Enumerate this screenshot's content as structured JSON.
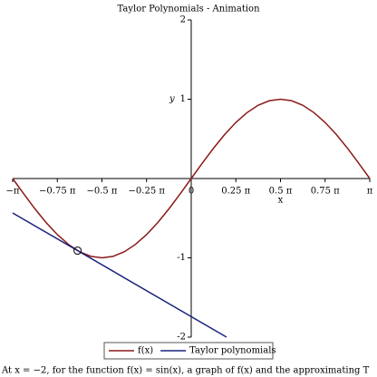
{
  "chart_data": {
    "type": "line",
    "title": "Taylor Polynomials - Animation",
    "x_label": "x",
    "y_label": "y",
    "xlim": [
      -3.1416,
      3.1416
    ],
    "ylim": [
      -2,
      2
    ],
    "xticks": [
      {
        "value": -3.1416,
        "label": "−π"
      },
      {
        "value": -2.3562,
        "label": "−0.75 π"
      },
      {
        "value": -1.5708,
        "label": "−0.5 π"
      },
      {
        "value": -0.7854,
        "label": "−0.25 π"
      },
      0,
      {
        "value": 0.7854,
        "label": "0.25 π"
      },
      {
        "value": 1.5708,
        "label": "0.5 π"
      },
      {
        "value": 2.3562,
        "label": "0.75 π"
      },
      {
        "value": 3.1416,
        "label": "π"
      }
    ],
    "yticks": [
      -2,
      -1,
      1,
      2
    ],
    "series": [
      {
        "name": "f(x)",
        "color": "#8b1a1a",
        "x": [
          -3.142,
          -2.945,
          -2.749,
          -2.553,
          -2.356,
          -2.16,
          -1.963,
          -1.767,
          -1.571,
          -1.374,
          -1.178,
          -0.982,
          -0.785,
          -0.589,
          -0.393,
          -0.196,
          0,
          0.196,
          0.393,
          0.589,
          0.785,
          0.982,
          1.178,
          1.374,
          1.571,
          1.767,
          1.963,
          2.16,
          2.356,
          2.553,
          2.749,
          2.945,
          3.142
        ],
        "values": [
          0,
          -0.195,
          -0.383,
          -0.556,
          -0.707,
          -0.831,
          -0.924,
          -0.981,
          -1,
          -0.981,
          -0.924,
          -0.831,
          -0.707,
          -0.556,
          -0.383,
          -0.195,
          0,
          0.195,
          0.383,
          0.556,
          0.707,
          0.831,
          0.924,
          0.981,
          1,
          0.981,
          0.924,
          0.831,
          0.707,
          0.556,
          0.383,
          0.195,
          0
        ]
      },
      {
        "name": "Taylor polynomials",
        "color": "#1a237e",
        "x": [
          -3.142,
          0.622
        ],
        "values": [
          -0.434,
          -2
        ]
      }
    ],
    "point": {
      "x": -2,
      "y": -0.909
    },
    "caption": "At x = −2, for the function f(x) = sin(x), a graph of f(x) and the approximating T"
  }
}
